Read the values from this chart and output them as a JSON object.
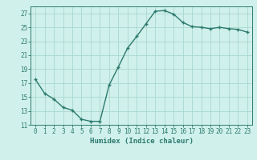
{
  "x": [
    0,
    1,
    2,
    3,
    4,
    5,
    6,
    7,
    8,
    9,
    10,
    11,
    12,
    13,
    14,
    15,
    16,
    17,
    18,
    19,
    20,
    21,
    22,
    23
  ],
  "y": [
    17.5,
    15.5,
    14.7,
    13.5,
    13.1,
    11.8,
    11.5,
    11.5,
    16.7,
    19.3,
    22.0,
    23.7,
    25.5,
    27.3,
    27.4,
    26.9,
    25.7,
    25.1,
    25.0,
    24.8,
    25.0,
    24.8,
    24.7,
    24.3
  ],
  "xlabel": "Humidex (Indice chaleur)",
  "ylim": [
    11,
    28
  ],
  "xlim": [
    -0.5,
    23.5
  ],
  "yticks": [
    11,
    13,
    15,
    17,
    19,
    21,
    23,
    25,
    27
  ],
  "xtick_labels": [
    "0",
    "1",
    "2",
    "3",
    "4",
    "5",
    "6",
    "7",
    "8",
    "9",
    "10",
    "11",
    "12",
    "13",
    "14",
    "15",
    "16",
    "17",
    "18",
    "19",
    "20",
    "21",
    "22",
    "23"
  ],
  "line_color": "#2d7a6e",
  "bg_color": "#cff0eb",
  "grid_color": "#aad8d0",
  "marker_size": 2.5,
  "line_width": 1.0,
  "tick_fontsize": 5.5,
  "xlabel_fontsize": 6.5
}
